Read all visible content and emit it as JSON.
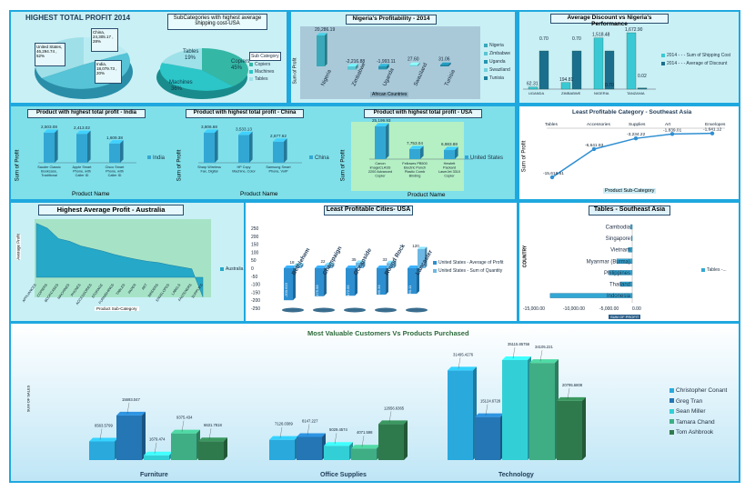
{
  "colors": {
    "frame": "#1fa8df",
    "panel_light": "#c9f0f5",
    "panel_cyan": "#7fe0ea",
    "bar": "#33a7d3",
    "teal": "#22b8c5"
  },
  "p1": {
    "title": "HIGHEST TOTAL PROFIT 2014",
    "chart_data": {
      "type": "pie",
      "labels": [
        "United States, 46,294.74 , 52%",
        "China, 24,305.17 , 28%",
        "India, 18,079.73 , 20%"
      ],
      "values": [
        46294.74,
        24305.17,
        18079.73
      ],
      "percent": [
        52,
        28,
        20
      ]
    }
  },
  "p2": {
    "title": "SubCategories with highest average shipping cost-USA",
    "legend_title": "Sub Category",
    "chart_data": {
      "type": "pie",
      "labels": [
        "Copiers",
        "Machines",
        "Tables"
      ],
      "percent": [
        45,
        36,
        19
      ],
      "slice_labels": [
        "Copiers 45%",
        "Machines 36%",
        "Tables 19%"
      ]
    }
  },
  "p3": {
    "title": "Nigeria's Profitability - 2014",
    "axis_y": "Sum of Profit",
    "axis_x": "African Countries",
    "chart_data": {
      "type": "bar",
      "categories": [
        "Nigeria",
        "Zimbabwe",
        "Uganda",
        "Swaziland",
        "Tunisia"
      ],
      "values": [
        20286.19,
        -2216.88,
        -1993.11,
        27.6,
        31.06
      ],
      "labels": [
        "20,286.19",
        "-2,216.88",
        "-1,993.11",
        "27.60",
        "31.06"
      ]
    }
  },
  "p4": {
    "title": "Average Discount vs Nigeria's Performance",
    "legend": [
      "2014 - - - Sum of Shipping Cost",
      "2014 - - - Average of Discount"
    ],
    "chart_data": {
      "type": "bar",
      "categories": [
        "UGANDA",
        "ZIMBABWE",
        "NIGERIA",
        "TANZANIA"
      ],
      "series": [
        {
          "name": "2014 - - - Sum of Shipping Cost",
          "values": [
            62.31,
            194.81,
            1518.48,
            1672.9
          ]
        },
        {
          "name": "2014 - - - Average of Discount",
          "values": [
            0.7,
            0.7,
            0.7,
            0.02
          ]
        }
      ],
      "labels_a": [
        "62.31",
        "194.81",
        "1,518.48",
        "1,672.90"
      ],
      "labels_b": [
        "0.70",
        "0.70",
        "0.70",
        "0.02"
      ]
    }
  },
  "p5": {
    "title": "Product with highest total profit - India",
    "axis_y": "Sum of Profit",
    "axis_x": "Product Name",
    "legend": "India",
    "chart_data": {
      "type": "bar",
      "categories": [
        "Sauder Classic Bookcase, Traditional",
        "Apple Smart Phone, with Caller ID",
        "Cisco Smart Phone, with Caller ID"
      ],
      "values": [
        2503.08,
        2413.02,
        1609.38
      ],
      "labels": [
        "2,503.08",
        "2,413.02",
        "1,609.38"
      ]
    }
  },
  "p6": {
    "title": "Product with highest total profit - China",
    "axis_y": "Sum of Profit",
    "axis_x": "Product Name",
    "legend": "China",
    "chart_data": {
      "type": "bar",
      "categories": [
        "Sharp Wireless Fax, Digital",
        "HP Copy Machine, Color",
        "Samsung Smart Phone, VoIP"
      ],
      "values": [
        3806.68,
        3533.13,
        2677.62
      ],
      "labels": [
        "3,806.68",
        "3,533.13",
        "2,677.62"
      ]
    }
  },
  "p7": {
    "title": "Product with highest total profit - USA",
    "axis_y": "Sum of Profit",
    "axis_x": "Product Name",
    "legend": "United States",
    "chart_data": {
      "type": "bar",
      "categories": [
        "Canon imageCLASS 2200 Advanced Copier",
        "Fellowes PB500 Electric Punch Plastic Comb Binding Machine with Manual Bind",
        "Hewlett Packard LaserJet 3310 Copier"
      ],
      "values": [
        25199.93,
        7753.04,
        6983.88
      ],
      "labels": [
        "25,199.93",
        "7,753.04",
        "6,983.88"
      ]
    }
  },
  "p8": {
    "title": "Least Profitable Category - Southeast Asia",
    "axis_y": "Sum of Profit",
    "axis_x": "Product Sub-Category",
    "chart_data": {
      "type": "line",
      "categories": [
        "Tables",
        "Accessories",
        "Supplies",
        "Art",
        "Envelopes"
      ],
      "values": [
        -15618.51,
        -6641.93,
        -3234.22,
        -1839.01,
        -1641.12
      ],
      "labels": [
        "-15,618.51",
        "-6,641.93",
        "-3,234.22",
        "-1,839.01",
        "-1,641.12"
      ]
    }
  },
  "p9": {
    "title": "Highest Average Profit - Australia",
    "axis_y": "Average Profit",
    "axis_x": "Product Sub-Category",
    "legend": "Australia",
    "chart_data": {
      "type": "area",
      "categories": [
        "APPLIANCES",
        "COPIERS",
        "BOOKCASES",
        "MACHINES",
        "PHONES",
        "ACCESSORIES",
        "STORAGE",
        "FURNISHINGS",
        "TABLES",
        "PAPER",
        "ART",
        "BINDERS",
        "ENVELOPES",
        "LABELS",
        "FASTENERS",
        "SUPPLIES"
      ],
      "series": [
        {
          "name": "Australia",
          "values": [
            165,
            150,
            118,
            110,
            96,
            88,
            80,
            70,
            62,
            55,
            49,
            45,
            38,
            32,
            26,
            -60
          ]
        }
      ]
    }
  },
  "p10": {
    "title": "Least Profitable Cities- USA",
    "legend": [
      "United States - Average of Profit",
      "United States - Sum of Quantity"
    ],
    "chart_data": {
      "type": "bar",
      "categories": [
        "Bethlehem",
        "Champaign",
        "Oceanside",
        "Round Rock",
        "Lancaster"
      ],
      "ylim": [
        -250,
        250
      ],
      "yticks": [
        "250",
        "200",
        "150",
        "100",
        "50",
        "0",
        "-50",
        "-100",
        "-150",
        "-200",
        "-250"
      ],
      "series": [
        {
          "name": "United States - Average of Profit",
          "values": [
            -200,
            -175,
            -172,
            -165,
            -160
          ]
        },
        {
          "name": "United States - Sum of Quantity",
          "values": [
            18,
            22,
            35,
            33,
            120
          ]
        }
      ],
      "labels": [
        "-200.619",
        "-175.58",
        "-172.55",
        "-165.34",
        "-160.11"
      ],
      "labels_b": [
        "18",
        "22",
        "35",
        "33",
        "120"
      ]
    }
  },
  "p11": {
    "title": "Tables - Southeast Asia",
    "axis_y": "COUNTRY",
    "axis_x": "SUM OF PROFIT",
    "legend": "Tables -...",
    "chart_data": {
      "type": "bar",
      "categories": [
        "Cambodia",
        "Singapore",
        "Vietnam",
        "Myanmar (Burma)",
        "Philippines",
        "Thailand",
        "Indonesia"
      ],
      "values": [
        -250,
        -30,
        -650,
        -2600,
        -3900,
        -2000,
        -13800
      ],
      "xticks": [
        "-15,000.00",
        "-10,000.00",
        "-5,000.00",
        "0.00"
      ]
    }
  },
  "p12": {
    "title": "Most Valuable Customers Vs Products Purchased",
    "axis_y": "SUM OF SALES",
    "legend": [
      "Christopher Conant",
      "Greg Tran",
      "Sean Miller",
      "Tamara Chand",
      "Tom Ashbrook"
    ],
    "chart_data": {
      "type": "bar",
      "categories": [
        "Furniture",
        "Office Supplies",
        "Technology"
      ],
      "series": [
        {
          "name": "Christopher Conant",
          "values": [
            6563.5799,
            7126.0389,
            31495.4276
          ]
        },
        {
          "name": "Greg Tran",
          "values": [
            15693.047,
            8147.227,
            15124.6728
          ]
        },
        {
          "name": "Sean Miller",
          "values": [
            1679.474,
            5029.4574,
            35115.85756
          ]
        },
        {
          "name": "Tamara Chand",
          "values": [
            9375.434,
            4071.598,
            34105.221
          ]
        },
        {
          "name": "Tom Ashbrook",
          "values": [
            6631.7818,
            12656.6365,
            20795.6808
          ]
        }
      ],
      "labels": [
        [
          "6563.5799",
          "15693.047",
          "1679.474",
          "9375.434",
          "6631.7818"
        ],
        [
          "7126.0389",
          "8147.227",
          "5029.4574",
          "4071.598",
          "12656.6365"
        ],
        [
          "31495.4276",
          "15124.6728",
          "35115.85756",
          "34105.221",
          "20795.6808"
        ]
      ]
    }
  }
}
